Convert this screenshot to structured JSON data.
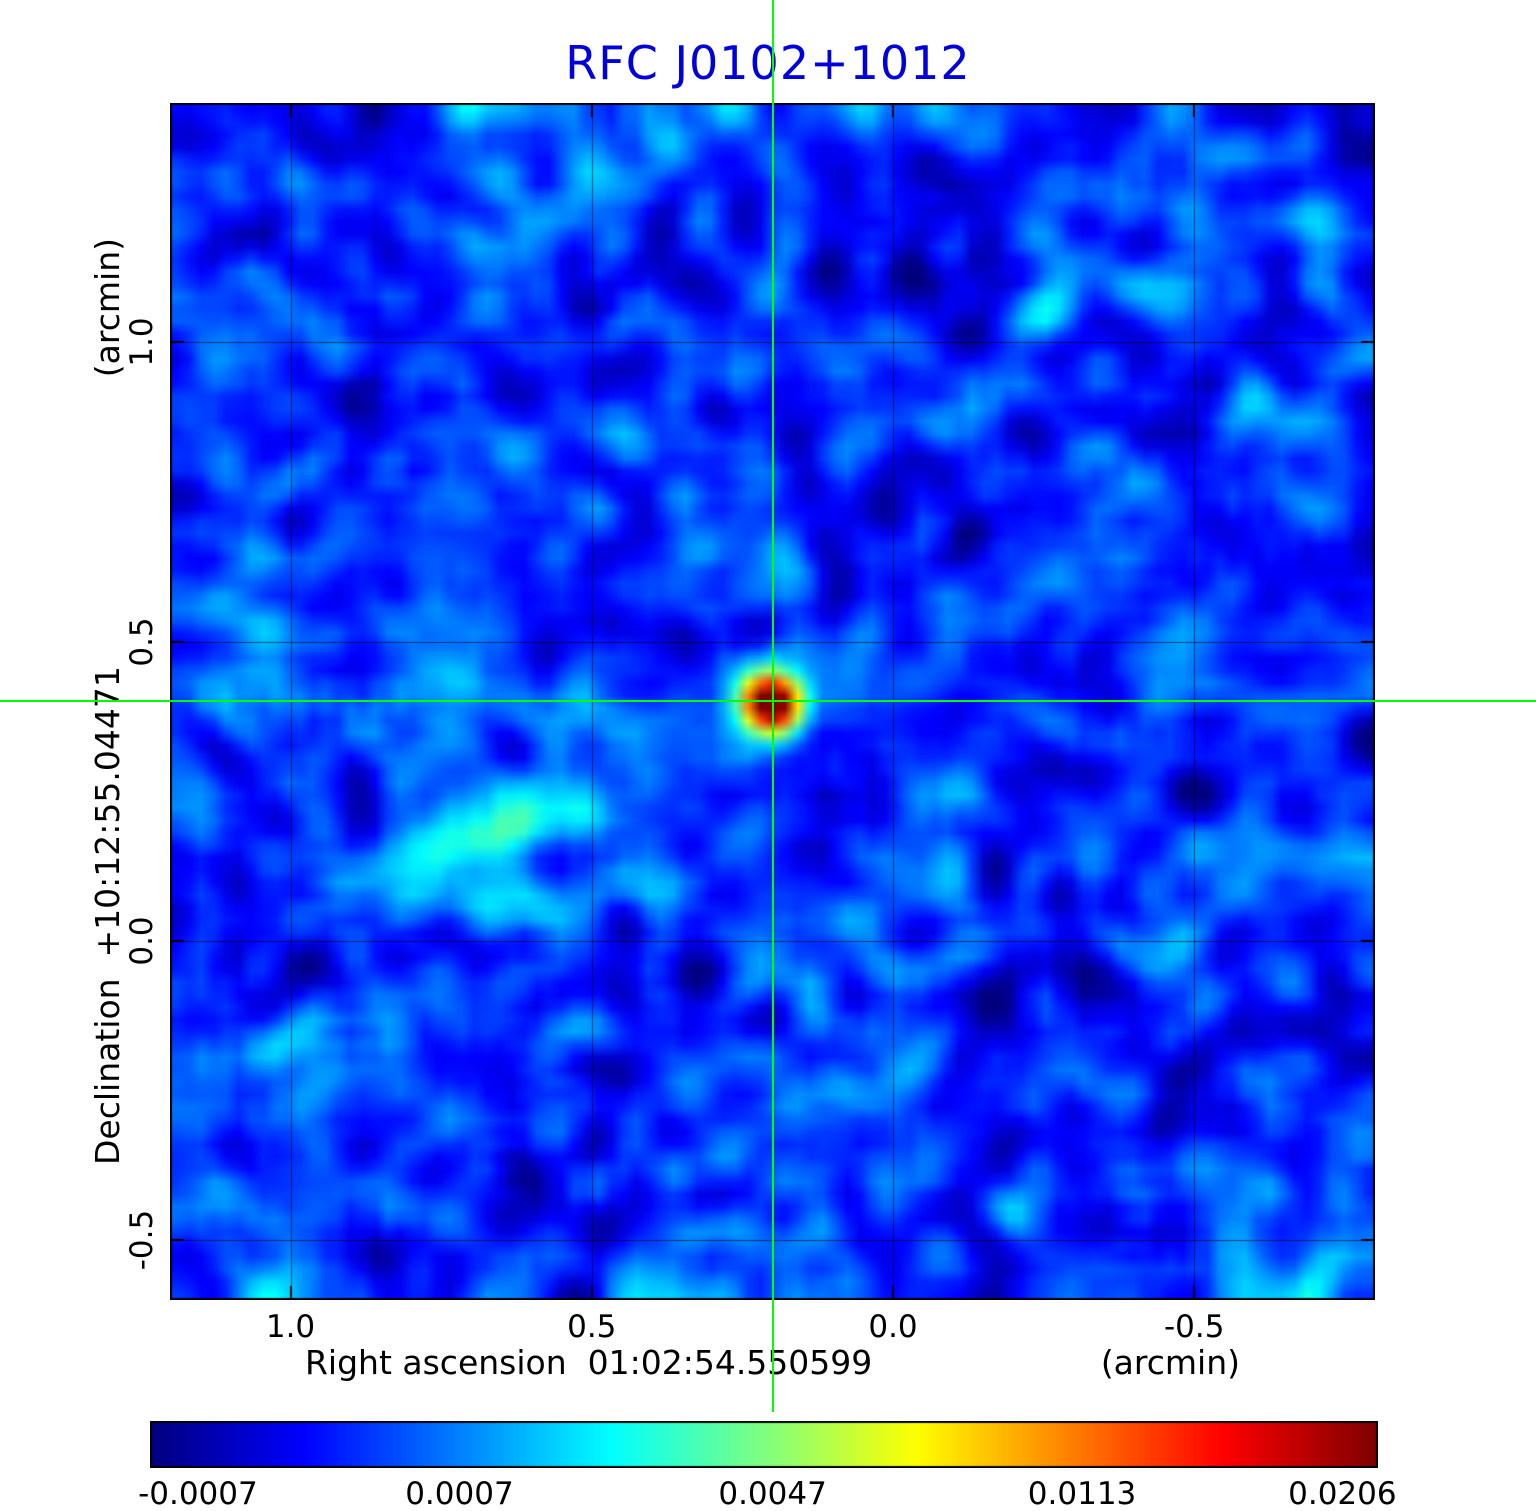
{
  "figure": {
    "title": "RFC J0102+1012",
    "title_color": "#0000dd",
    "background": "#ffffff"
  },
  "axes": {
    "x_title": "Right ascension  01:02:54.550599",
    "x_unit": "(arcmin)",
    "y_title": "Declination  +10:12:55.04471",
    "y_unit": "(arcmin)",
    "x_tick_labels": [
      "1.0",
      "0.5",
      "0.0",
      "-0.5"
    ],
    "x_tick_values": [
      1.0,
      0.5,
      0.0,
      -0.5
    ],
    "y_tick_labels": [
      "1.0",
      "0.5",
      "0.0",
      "-0.5"
    ],
    "y_tick_values": [
      1.0,
      0.5,
      0.0,
      -0.5
    ]
  },
  "chart_data": {
    "type": "heatmap",
    "title": "RFC J0102+1012",
    "xlabel": "Right ascension 01:02:54.550599 (arcmin)",
    "ylabel": "Declination +10:12:55.04471 (arcmin)",
    "x_range": [
      1.2,
      -0.8
    ],
    "y_range": [
      -0.6,
      1.4
    ],
    "grid": true,
    "colormap": "jet",
    "background_noise_rms": 0.0007,
    "peak_value": 0.0206,
    "colorbar": {
      "tick_values": [
        -0.0007,
        0.0007,
        0.0047,
        0.0113,
        0.0206
      ],
      "tick_labels": [
        "-0.0007",
        "0.0007",
        "0.0047",
        "0.0113",
        "0.0206"
      ],
      "tick_positions": [
        0.039,
        0.252,
        0.507,
        0.759,
        0.971
      ],
      "min": -0.002,
      "max": 0.0206
    },
    "crosshair": {
      "x": 0.2,
      "y": 0.4,
      "color": "#00ff00"
    },
    "features": [
      {
        "name": "compact-peak-source",
        "x": 0.2,
        "y": 0.4,
        "amp": 0.95,
        "sx": 0.034,
        "sy": 0.034
      },
      {
        "name": "extended-emission-blob",
        "x": 0.67,
        "y": 0.17,
        "amp": 0.2,
        "sx": 0.1,
        "sy": 0.07
      },
      {
        "name": "jet-tail",
        "x": 0.5,
        "y": 0.28,
        "amp": 0.1,
        "sx": 0.09,
        "sy": 0.055
      },
      {
        "name": "sidelobe-dark-spot-1",
        "x": 0.2,
        "y": 0.53,
        "amp": -0.12,
        "sx": 0.025,
        "sy": 0.025
      },
      {
        "name": "sidelobe-dark-spot-2",
        "x": 0.44,
        "y": 0.02,
        "amp": -0.12,
        "sx": 0.03,
        "sy": 0.03
      },
      {
        "name": "sidelobe-dark-spot-3",
        "x": 0.2,
        "y": -0.12,
        "amp": -0.08,
        "sx": 0.03,
        "sy": 0.04
      },
      {
        "name": "horizontal-sidelobe-band",
        "band": "horizontal",
        "y": 0.4,
        "amp": 0.05,
        "sigma": 0.05
      },
      {
        "name": "vertical-sidelobe-band",
        "band": "vertical",
        "x": 0.2,
        "amp": 0.035,
        "sigma": 0.04
      }
    ]
  }
}
